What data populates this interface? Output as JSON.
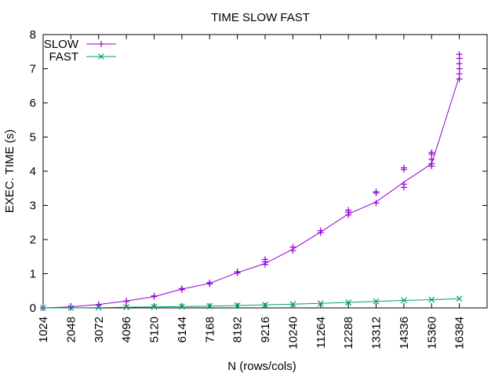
{
  "chart_data": {
    "type": "line",
    "title": "TIME SLOW FAST",
    "xlabel": "N (rows/cols)",
    "ylabel": "EXEC. TIME (s)",
    "xlim": [
      1024,
      17408
    ],
    "ylim": [
      0,
      8
    ],
    "x_ticks": [
      1024,
      2048,
      3072,
      4096,
      5120,
      6144,
      7168,
      8192,
      9216,
      10240,
      11264,
      12288,
      13312,
      14336,
      15360,
      16384
    ],
    "y_ticks": [
      0,
      1,
      2,
      3,
      4,
      5,
      6,
      7,
      8
    ],
    "legend_position": "top-left",
    "series": [
      {
        "name": "SLOW",
        "color": "#9400d3",
        "marker": "plus",
        "x": [
          1024,
          2048,
          3072,
          4096,
          5120,
          6144,
          7168,
          8192,
          9216,
          10240,
          11264,
          12288,
          13312,
          14336,
          15360,
          16384
        ],
        "values": [
          0.0,
          0.03,
          0.1,
          0.2,
          0.33,
          0.55,
          0.72,
          1.03,
          1.3,
          1.72,
          2.22,
          2.75,
          3.1,
          3.68,
          4.22,
          6.78
        ],
        "spread": [
          [
            0.0
          ],
          [
            0.02,
            0.03
          ],
          [
            0.09,
            0.1
          ],
          [
            0.19,
            0.2
          ],
          [
            0.33,
            0.35
          ],
          [
            0.53,
            0.57
          ],
          [
            0.7,
            0.74
          ],
          [
            1.02,
            1.06
          ],
          [
            1.27,
            1.35,
            1.42
          ],
          [
            1.68,
            1.78
          ],
          [
            2.2,
            2.26
          ],
          [
            2.72,
            2.8,
            2.86
          ],
          [
            3.07,
            3.36,
            3.4
          ],
          [
            3.53,
            3.62,
            4.05,
            4.1
          ],
          [
            4.15,
            4.22,
            4.35,
            4.5,
            4.55
          ],
          [
            6.7,
            6.85,
            7.0,
            7.15,
            7.3,
            7.42
          ]
        ]
      },
      {
        "name": "FAST",
        "color": "#009e73",
        "marker": "cross",
        "x": [
          1024,
          2048,
          3072,
          4096,
          5120,
          6144,
          7168,
          8192,
          9216,
          10240,
          11264,
          12288,
          13312,
          14336,
          15360,
          16384
        ],
        "values": [
          0.0,
          0.0,
          0.01,
          0.02,
          0.03,
          0.04,
          0.05,
          0.07,
          0.09,
          0.11,
          0.13,
          0.16,
          0.19,
          0.22,
          0.24,
          0.27
        ]
      }
    ]
  }
}
